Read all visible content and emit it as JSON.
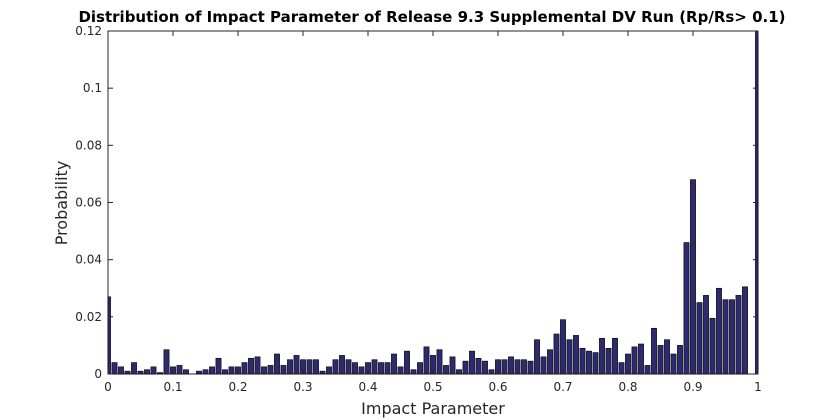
{
  "chart_data": {
    "type": "bar",
    "title": "Distribution of Impact Parameter of Release 9.3 Supplemental DV Run (Rp/Rs> 0.1)",
    "xlabel": "Impact Parameter",
    "ylabel": "Probability",
    "xlim": [
      0,
      1
    ],
    "ylim": [
      0,
      0.12
    ],
    "xticks": [
      "0",
      "0.1",
      "0.2",
      "0.3",
      "0.4",
      "0.5",
      "0.6",
      "0.7",
      "0.8",
      "0.9",
      "1"
    ],
    "yticks": [
      "0",
      "0.02",
      "0.04",
      "0.06",
      "0.08",
      "0.1",
      "0.12"
    ],
    "bar_color": "#2e2a6e",
    "bin_width": 0.01,
    "x": [
      0.0,
      0.01,
      0.02,
      0.03,
      0.04,
      0.05,
      0.06,
      0.07,
      0.08,
      0.09,
      0.1,
      0.11,
      0.12,
      0.13,
      0.14,
      0.15,
      0.16,
      0.17,
      0.18,
      0.19,
      0.2,
      0.21,
      0.22,
      0.23,
      0.24,
      0.25,
      0.26,
      0.27,
      0.28,
      0.29,
      0.3,
      0.31,
      0.32,
      0.33,
      0.34,
      0.35,
      0.36,
      0.37,
      0.38,
      0.39,
      0.4,
      0.41,
      0.42,
      0.43,
      0.44,
      0.45,
      0.46,
      0.47,
      0.48,
      0.49,
      0.5,
      0.51,
      0.52,
      0.53,
      0.54,
      0.55,
      0.56,
      0.57,
      0.58,
      0.59,
      0.6,
      0.61,
      0.62,
      0.63,
      0.64,
      0.65,
      0.66,
      0.67,
      0.68,
      0.69,
      0.7,
      0.71,
      0.72,
      0.73,
      0.74,
      0.75,
      0.76,
      0.77,
      0.78,
      0.79,
      0.8,
      0.81,
      0.82,
      0.83,
      0.84,
      0.85,
      0.86,
      0.87,
      0.88,
      0.89,
      0.9,
      0.91,
      0.92,
      0.93,
      0.94,
      0.95,
      0.96,
      0.97,
      0.98,
      0.99,
      1.0
    ],
    "values": [
      0.027,
      0.004,
      0.0025,
      0.001,
      0.004,
      0.001,
      0.0015,
      0.0025,
      0.0005,
      0.0085,
      0.0025,
      0.003,
      0.0015,
      0.0,
      0.001,
      0.0015,
      0.0025,
      0.0055,
      0.0015,
      0.0025,
      0.0025,
      0.004,
      0.0055,
      0.006,
      0.0025,
      0.003,
      0.007,
      0.003,
      0.005,
      0.0065,
      0.005,
      0.005,
      0.005,
      0.001,
      0.0025,
      0.005,
      0.0065,
      0.005,
      0.004,
      0.0025,
      0.004,
      0.005,
      0.004,
      0.004,
      0.007,
      0.0025,
      0.008,
      0.0015,
      0.004,
      0.0095,
      0.0065,
      0.0085,
      0.003,
      0.006,
      0.0015,
      0.0045,
      0.008,
      0.0055,
      0.0045,
      0.0015,
      0.005,
      0.005,
      0.006,
      0.005,
      0.005,
      0.0045,
      0.012,
      0.006,
      0.0085,
      0.014,
      0.019,
      0.012,
      0.0135,
      0.009,
      0.008,
      0.0075,
      0.0125,
      0.009,
      0.0125,
      0.004,
      0.007,
      0.0095,
      0.0105,
      0.003,
      0.016,
      0.01,
      0.012,
      0.007,
      0.01,
      0.046,
      0.068,
      0.025,
      0.0275,
      0.0195,
      0.03,
      0.026,
      0.026,
      0.0275,
      0.0305,
      0.0,
      0.12
    ]
  }
}
